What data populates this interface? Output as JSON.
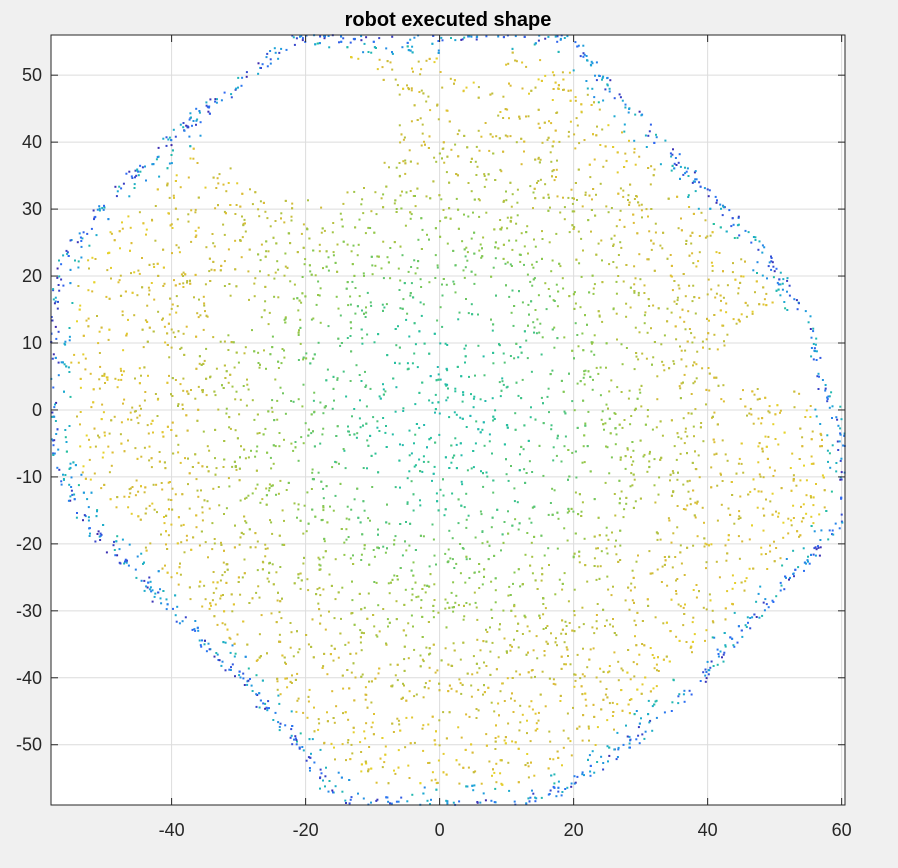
{
  "chart_data": {
    "type": "scatter",
    "title": "robot executed shape",
    "xlabel": "",
    "ylabel": "",
    "xlim": [
      -58,
      60.5
    ],
    "ylim": [
      -59,
      56
    ],
    "x_ticks": [
      -40,
      -20,
      0,
      20,
      40,
      60
    ],
    "y_ticks": [
      -50,
      -40,
      -30,
      -20,
      -10,
      0,
      10,
      20,
      30,
      40,
      50
    ],
    "x_tick_labels": [
      "-40",
      "-20",
      "0",
      "20",
      "40",
      "60"
    ],
    "y_tick_labels": [
      "-50",
      "-40",
      "-30",
      "-20",
      "-10",
      "0",
      "10",
      "20",
      "30",
      "40",
      "50"
    ],
    "grid": true,
    "colormap": "parula",
    "colormap_stops": [
      "#3e26a8",
      "#2d6bf5",
      "#1ba7d6",
      "#26c19b",
      "#8bc84c",
      "#dbba36",
      "#f9fb15"
    ],
    "boundary_polygon": [
      [
        -21,
        56
      ],
      [
        -2,
        56
      ],
      [
        5,
        56
      ],
      [
        12,
        56.5
      ],
      [
        20,
        56
      ],
      [
        24,
        50
      ],
      [
        32,
        41
      ],
      [
        40,
        33
      ],
      [
        48,
        24
      ],
      [
        55,
        14
      ],
      [
        57,
        5
      ],
      [
        59,
        0
      ],
      [
        60.5,
        -3
      ],
      [
        60.5,
        -17
      ],
      [
        57,
        -20
      ],
      [
        50,
        -28
      ],
      [
        42,
        -37
      ],
      [
        35,
        -44
      ],
      [
        26,
        -52
      ],
      [
        18,
        -57
      ],
      [
        12,
        -59
      ],
      [
        -13,
        -59
      ],
      [
        -17,
        -56
      ],
      [
        -22,
        -49
      ],
      [
        -30,
        -40
      ],
      [
        -39,
        -31
      ],
      [
        -46,
        -24
      ],
      [
        -52,
        -18
      ],
      [
        -56,
        -11
      ],
      [
        -58,
        -5
      ],
      [
        -58,
        13
      ],
      [
        -57,
        19
      ],
      [
        -56,
        23
      ],
      [
        -50,
        31
      ],
      [
        -45,
        36
      ],
      [
        -35,
        45
      ],
      [
        -28,
        50
      ]
    ],
    "interior_gaps": [
      {
        "x": [
          -35,
          -6
        ],
        "y": [
          31,
          55
        ],
        "shape": "ellipse",
        "cx": -20,
        "cy": 43,
        "rx": 14,
        "ry": 11
      },
      {
        "x": [
          0,
          10
        ],
        "y": [
          48,
          56
        ],
        "shape": "ellipse",
        "cx": 5,
        "cy": 53,
        "rx": 5,
        "ry": 4
      },
      {
        "x": [
          -58,
          -52
        ],
        "y": [
          13,
          23
        ],
        "shape": "ellipse",
        "cx": -57,
        "cy": 17,
        "rx": 2,
        "ry": 5
      },
      {
        "x": [
          43,
          56
        ],
        "y": [
          2,
          16
        ],
        "shape": "ellipse",
        "cx": 50,
        "cy": 9,
        "rx": 7,
        "ry": 6
      }
    ],
    "point_count": 5200,
    "random_seed": 11
  }
}
